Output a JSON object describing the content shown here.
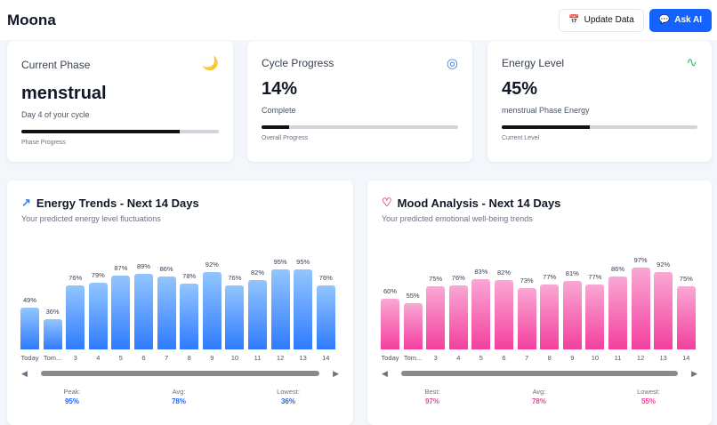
{
  "header": {
    "logo": "Moona",
    "update_label": "Update Data",
    "ask_label": "Ask AI"
  },
  "cards": {
    "phase": {
      "title": "Current Phase",
      "icon": "moon-icon",
      "value": "menstrual",
      "sub": "Day 4 of your cycle",
      "progress_caption": "Phase Progress",
      "progress": 0.8
    },
    "cycle": {
      "title": "Cycle Progress",
      "icon": "target-icon",
      "value": "14%",
      "sub": "Complete",
      "progress_caption": "Overall Progress",
      "progress": 0.14
    },
    "energy": {
      "title": "Energy Level",
      "icon": "activity-icon",
      "value": "45%",
      "sub": "menstrual Phase Energy",
      "progress_caption": "Current Level",
      "progress": 0.45
    }
  },
  "colors": {
    "energy_top": "#93c5fd",
    "energy_bottom": "#2f7bff",
    "mood_top": "#f9a8d4",
    "mood_bottom": "#f43f9e",
    "accent": "#1463ff",
    "energy_stat": "#2563eb",
    "mood_stat": "#ec4899"
  },
  "chart_data": [
    {
      "type": "bar",
      "title": "Energy Trends - Next 14 Days",
      "subtitle": "Your predicted energy level fluctuations",
      "categories": [
        "Today",
        "Tom...",
        "3",
        "4",
        "5",
        "6",
        "7",
        "8",
        "9",
        "10",
        "11",
        "12",
        "13",
        "14"
      ],
      "values": [
        49,
        36,
        76,
        79,
        87,
        89,
        86,
        78,
        92,
        76,
        82,
        95,
        95,
        76
      ],
      "ylim": [
        0,
        100
      ],
      "summary": [
        {
          "label": "Peak:",
          "value": "95%"
        },
        {
          "label": "Avg:",
          "value": "78%"
        },
        {
          "label": "Lowest:",
          "value": "36%"
        }
      ]
    },
    {
      "type": "bar",
      "title": "Mood Analysis - Next 14 Days",
      "subtitle": "Your predicted emotional well-being trends",
      "categories": [
        "Today",
        "Tom...",
        "3",
        "4",
        "5",
        "6",
        "7",
        "8",
        "9",
        "10",
        "11",
        "12",
        "13",
        "14"
      ],
      "values": [
        60,
        55,
        75,
        76,
        83,
        82,
        73,
        77,
        81,
        77,
        86,
        97,
        92,
        75
      ],
      "ylim": [
        0,
        100
      ],
      "summary": [
        {
          "label": "Best:",
          "value": "97%"
        },
        {
          "label": "Avg:",
          "value": "78%"
        },
        {
          "label": "Lowest:",
          "value": "55%"
        }
      ]
    }
  ]
}
